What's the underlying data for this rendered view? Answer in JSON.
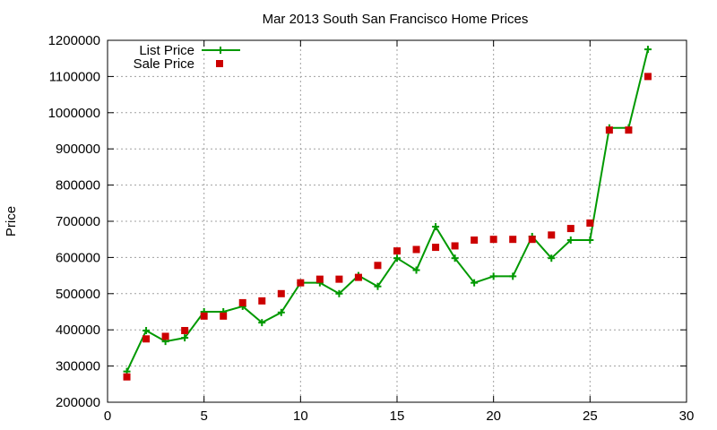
{
  "chart_data": {
    "type": "line",
    "title": "Mar 2013 South San Francisco Home Prices",
    "xlabel": "",
    "ylabel": "Price",
    "xlim": [
      0,
      30
    ],
    "ylim": [
      200000,
      1200000
    ],
    "xticks": [
      0,
      5,
      10,
      15,
      20,
      25,
      30
    ],
    "yticks": [
      200000,
      300000,
      400000,
      500000,
      600000,
      700000,
      800000,
      900000,
      1000000,
      1100000,
      1200000
    ],
    "grid": true,
    "legend_position": "top-left",
    "series": [
      {
        "name": "List Price",
        "style": "line+cross",
        "color": "#009900",
        "x": [
          1,
          2,
          3,
          4,
          5,
          6,
          7,
          8,
          9,
          10,
          11,
          12,
          13,
          14,
          15,
          16,
          17,
          18,
          19,
          20,
          21,
          22,
          23,
          24,
          25,
          26,
          27,
          28
        ],
        "y": [
          285000,
          398000,
          368000,
          378000,
          450000,
          450000,
          465000,
          420000,
          448000,
          530000,
          530000,
          500000,
          550000,
          520000,
          598000,
          565000,
          685000,
          598000,
          530000,
          548000,
          548000,
          658000,
          598000,
          648000,
          648000,
          958000,
          958000,
          1175000
        ]
      },
      {
        "name": "Sale Price",
        "style": "square",
        "color": "#cc0000",
        "x": [
          1,
          2,
          3,
          4,
          5,
          6,
          7,
          8,
          9,
          10,
          11,
          12,
          13,
          14,
          15,
          16,
          17,
          18,
          19,
          20,
          21,
          22,
          23,
          24,
          25,
          26,
          27,
          28
        ],
        "y": [
          270000,
          375000,
          382000,
          398000,
          438000,
          438000,
          475000,
          480000,
          500000,
          530000,
          540000,
          540000,
          545000,
          578000,
          618000,
          622000,
          628000,
          632000,
          648000,
          650000,
          650000,
          650000,
          662000,
          680000,
          695000,
          952000,
          952000,
          1100000
        ]
      }
    ]
  }
}
